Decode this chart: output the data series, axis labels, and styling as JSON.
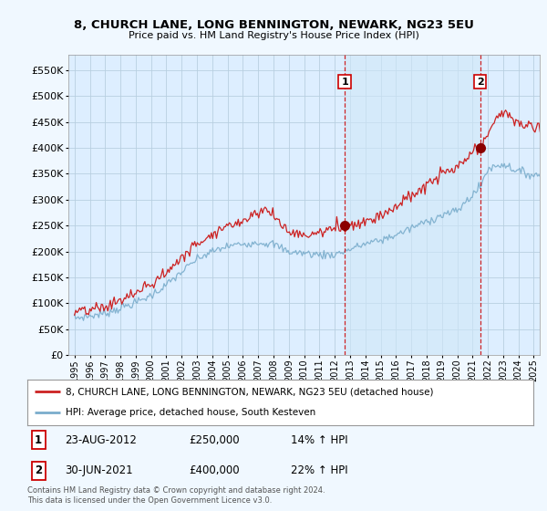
{
  "title1": "8, CHURCH LANE, LONG BENNINGTON, NEWARK, NG23 5EU",
  "title2": "Price paid vs. HM Land Registry's House Price Index (HPI)",
  "background_color": "#f0f8ff",
  "plot_bg_color": "#ddeeff",
  "grid_color": "#b8cfe0",
  "line1_color": "#cc2222",
  "line2_color": "#7aadcc",
  "shade_color": "#d0e8f8",
  "annotation1": {
    "label": "1",
    "date_str": "23-AUG-2012",
    "price": "£250,000",
    "hpi": "14% ↑ HPI",
    "x_year": 2012.65
  },
  "annotation2": {
    "label": "2",
    "date_str": "30-JUN-2021",
    "price": "£400,000",
    "hpi": "22% ↑ HPI",
    "x_year": 2021.5
  },
  "legend_line1": "8, CHURCH LANE, LONG BENNINGTON, NEWARK, NG23 5EU (detached house)",
  "legend_line2": "HPI: Average price, detached house, South Kesteven",
  "footer": "Contains HM Land Registry data © Crown copyright and database right 2024.\nThis data is licensed under the Open Government Licence v3.0.",
  "yticks": [
    0,
    50000,
    100000,
    150000,
    200000,
    250000,
    300000,
    350000,
    400000,
    450000,
    500000,
    550000
  ],
  "ylim": [
    0,
    580000
  ],
  "xlim_start": 1994.6,
  "xlim_end": 2025.4
}
